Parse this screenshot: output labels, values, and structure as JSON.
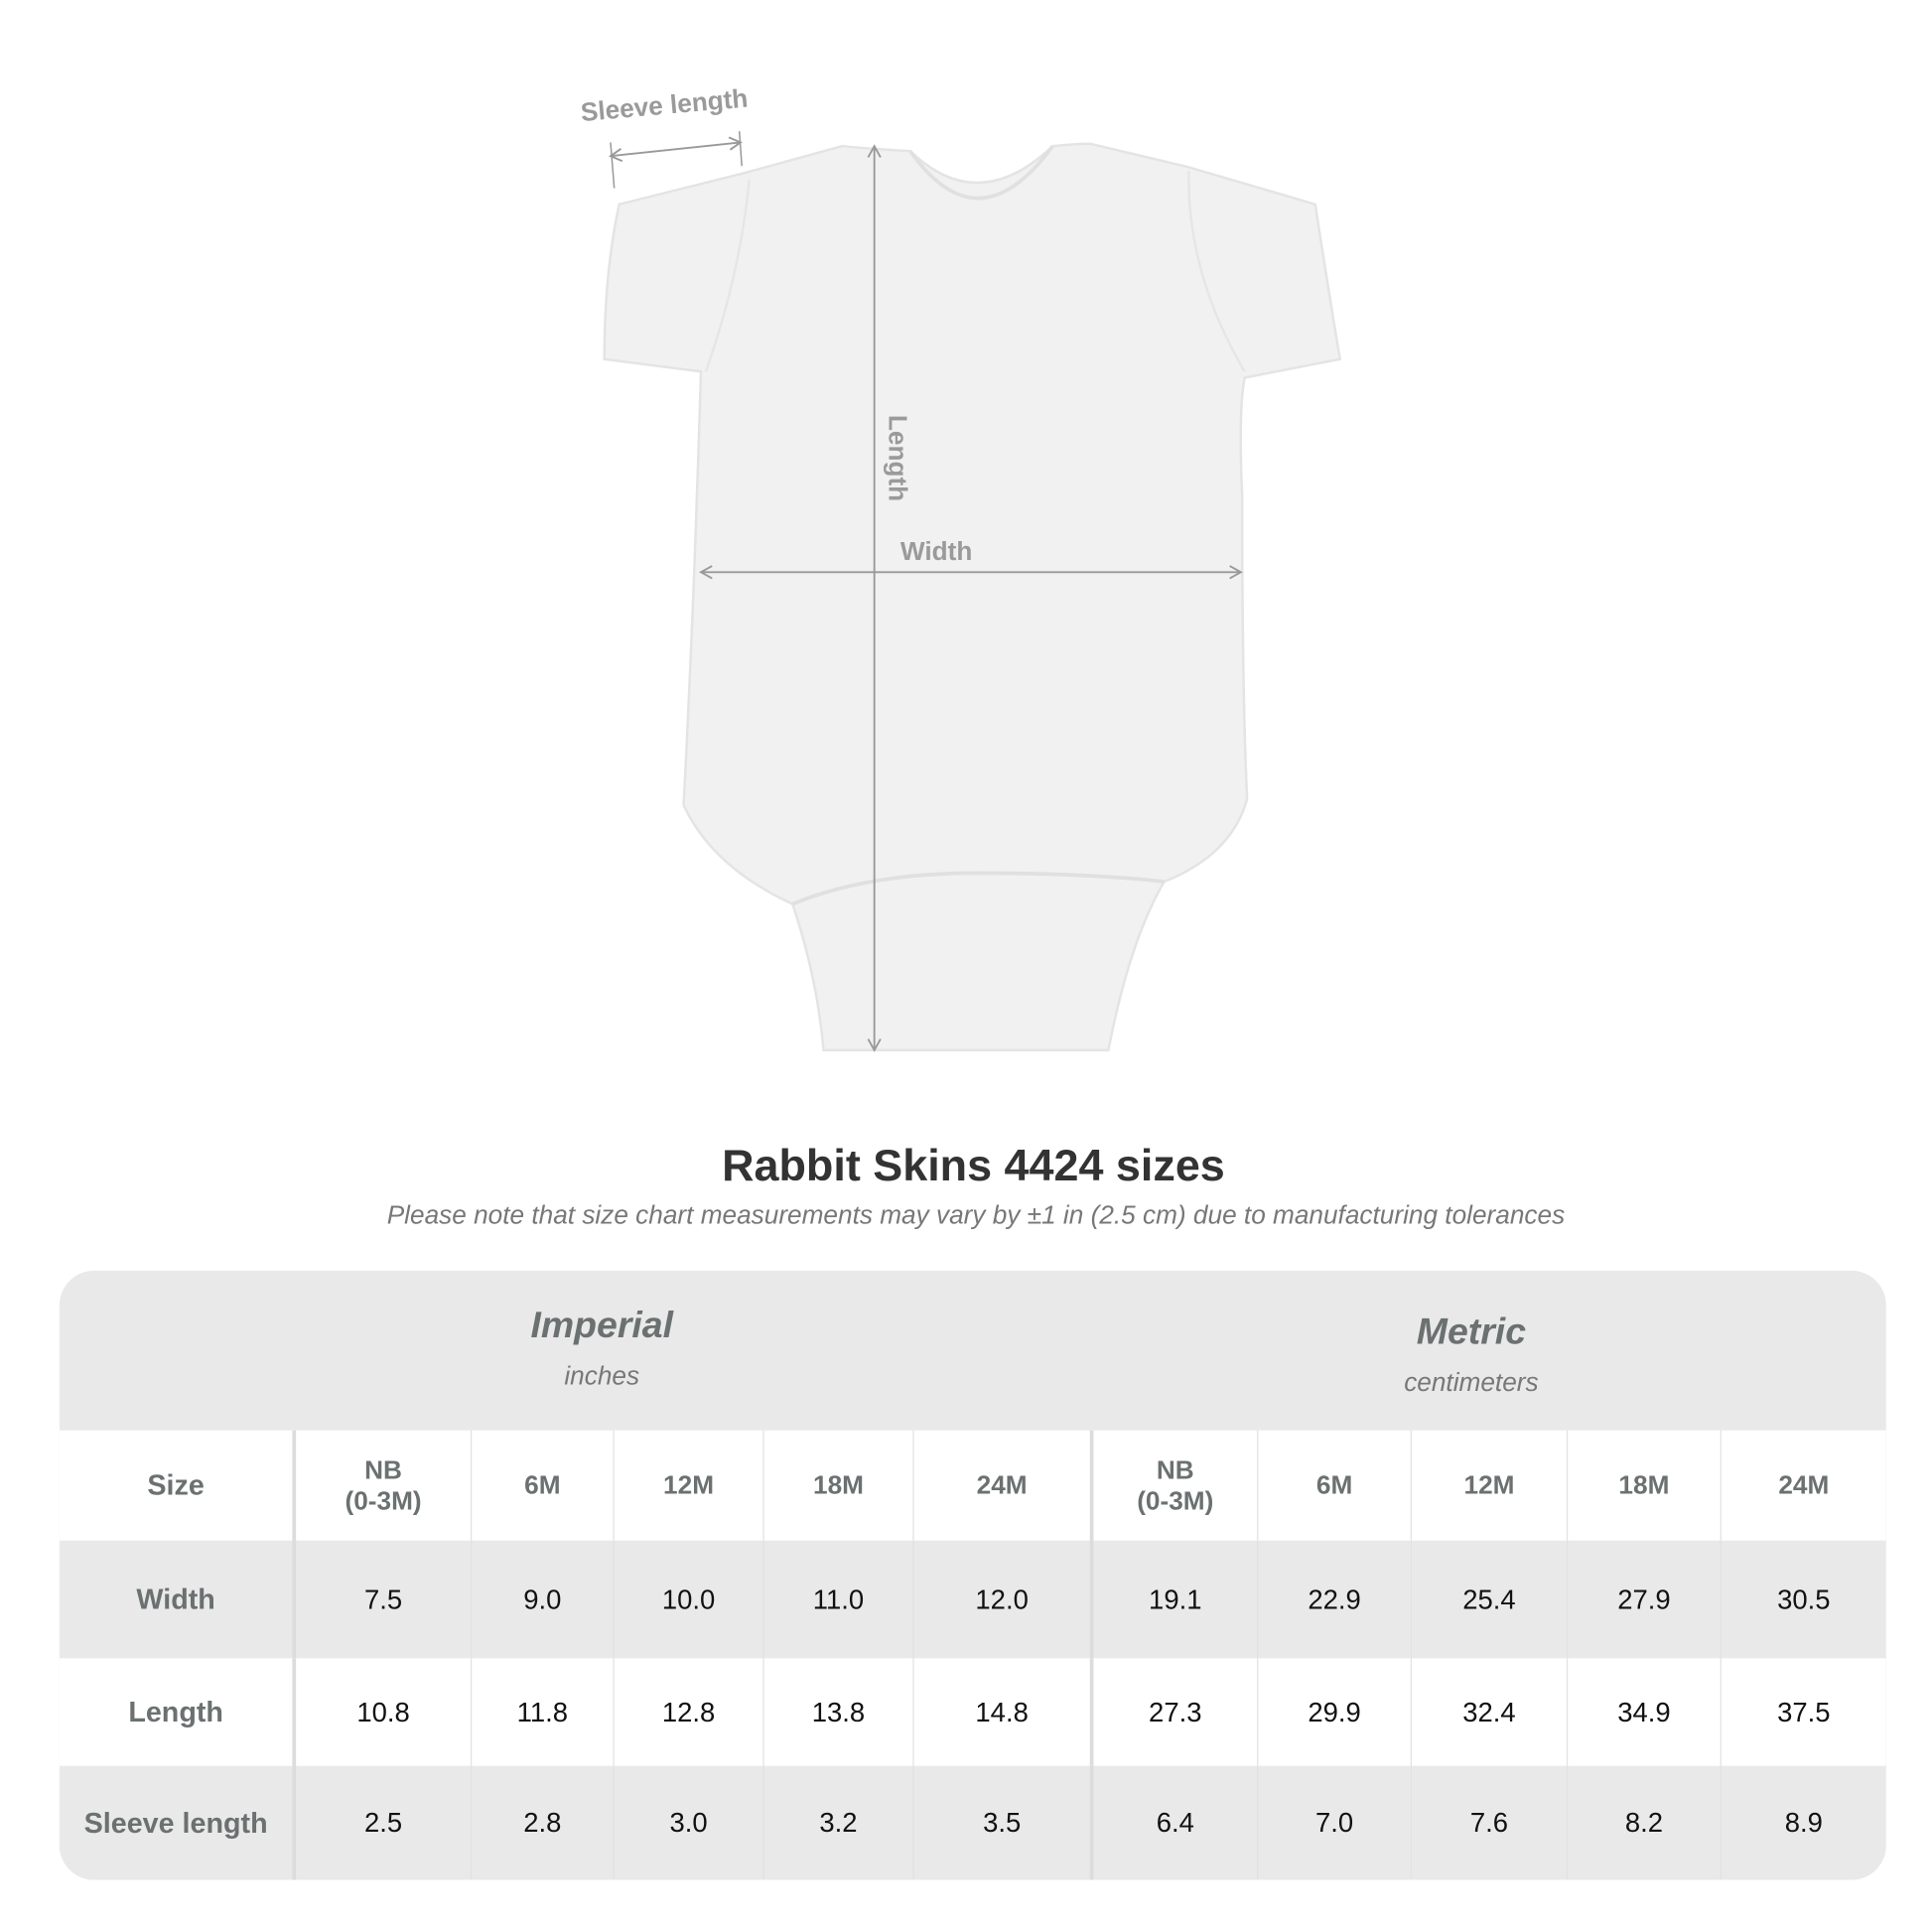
{
  "diagram": {
    "sleeve_label": "Sleeve length",
    "length_label": "Length",
    "width_label": "Width"
  },
  "title": "Rabbit Skins 4424 sizes",
  "subtitle": "Please note that size chart measurements may vary by ±1 in (2.5 cm) due to manufacturing tolerances",
  "table": {
    "imperial": {
      "title": "Imperial",
      "unit": "inches"
    },
    "metric": {
      "title": "Metric",
      "unit": "centimeters"
    },
    "size_label": "Size",
    "sizes": [
      "NB\n(0-3M)",
      "6M",
      "12M",
      "18M",
      "24M",
      "NB\n(0-3M)",
      "6M",
      "12M",
      "18M",
      "24M"
    ],
    "rows": [
      {
        "label": "Width",
        "values": [
          "7.5",
          "9.0",
          "10.0",
          "11.0",
          "12.0",
          "19.1",
          "22.9",
          "25.4",
          "27.9",
          "30.5"
        ]
      },
      {
        "label": "Length",
        "values": [
          "10.8",
          "11.8",
          "12.8",
          "13.8",
          "14.8",
          "27.3",
          "29.9",
          "32.4",
          "34.9",
          "37.5"
        ]
      },
      {
        "label": "Sleeve length",
        "values": [
          "2.5",
          "2.8",
          "3.0",
          "3.2",
          "3.5",
          "6.4",
          "7.0",
          "7.6",
          "8.2",
          "8.9"
        ]
      }
    ]
  },
  "colors": {
    "band": "#e9e9e9",
    "label": "#6b7070",
    "dimension": "#9a9a9a"
  }
}
